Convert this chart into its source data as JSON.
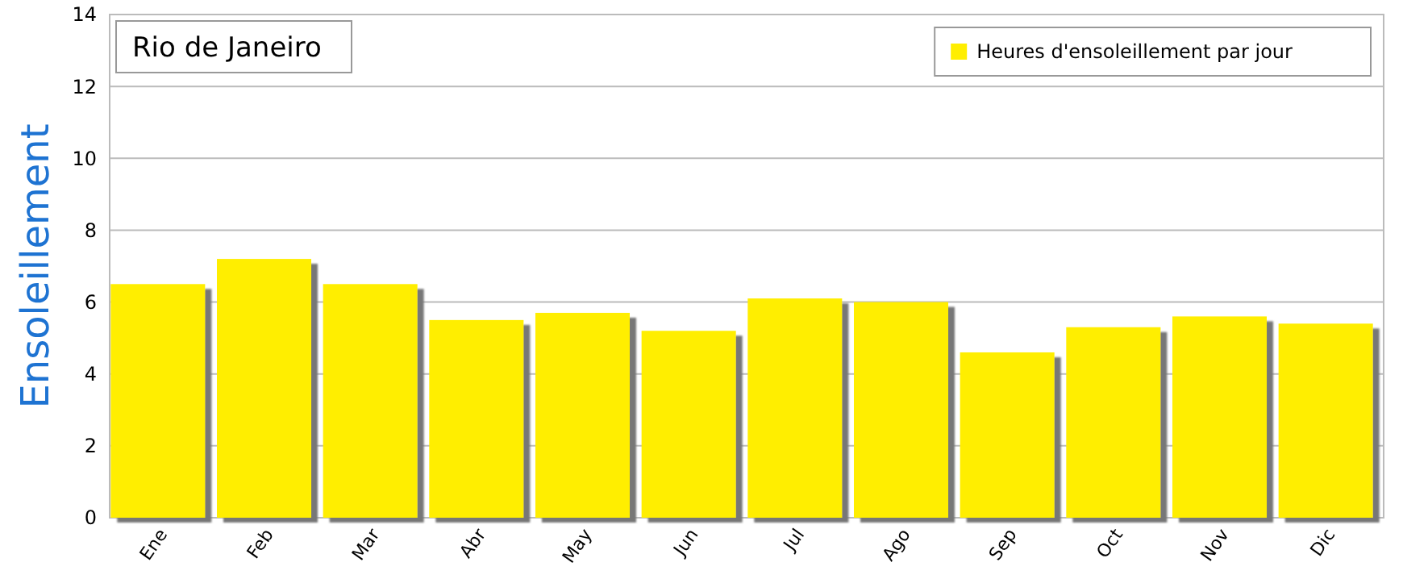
{
  "chart_data": {
    "type": "bar",
    "title": "Rio de Janeiro",
    "ylabel": "Ensoleillement",
    "categories": [
      "Ene",
      "Feb",
      "Mar",
      "Abr",
      "May",
      "Jun",
      "Jul",
      "Ago",
      "Sep",
      "Oct",
      "Nov",
      "Dic"
    ],
    "series": [
      {
        "name": "Heures d'ensoleillement par jour",
        "color": "#ffee00",
        "values": [
          6.5,
          7.2,
          6.5,
          5.5,
          5.7,
          5.2,
          6.1,
          6.0,
          4.6,
          5.3,
          5.6,
          5.4
        ]
      }
    ],
    "ylim": [
      0,
      14
    ],
    "yticks": [
      0,
      2,
      4,
      6,
      8,
      10,
      12,
      14
    ],
    "grid": "y",
    "legend": "top right"
  }
}
